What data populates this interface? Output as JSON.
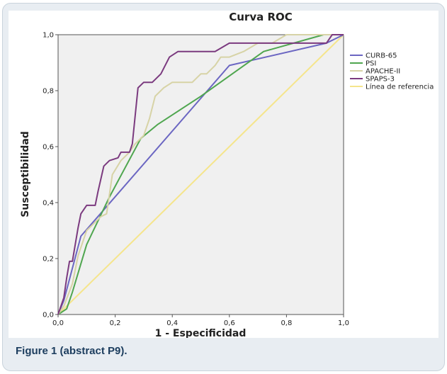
{
  "figure": {
    "caption": "Figure 1 (abstract P9)."
  },
  "chart_data": {
    "type": "line",
    "title": "Curva ROC",
    "xlabel": "1 - Especificidad",
    "ylabel": "Susceptibilidad",
    "xlim": [
      0,
      1
    ],
    "ylim": [
      0,
      1
    ],
    "xticks": [
      "0,0",
      "0,2",
      "0,4",
      "0,6",
      "0,8",
      "1,0"
    ],
    "yticks": [
      "0,0",
      "0,2",
      "0,4",
      "0,6",
      "0,8",
      "1,0"
    ],
    "grid": false,
    "legend_position": "right",
    "series": [
      {
        "name": "CURB-65",
        "color": "#6b66c2",
        "x": [
          0,
          0.02,
          0.08,
          0.6,
          0.94,
          1
        ],
        "y": [
          0,
          0.05,
          0.28,
          0.89,
          0.97,
          1
        ]
      },
      {
        "name": "PSI",
        "color": "#4fa64f",
        "x": [
          0,
          0.03,
          0.05,
          0.1,
          0.18,
          0.29,
          0.35,
          0.5,
          0.72,
          0.93,
          1
        ],
        "y": [
          0,
          0.02,
          0.08,
          0.25,
          0.42,
          0.63,
          0.68,
          0.78,
          0.94,
          1,
          1
        ]
      },
      {
        "name": "APACHE-II",
        "color": "#d7d3a6",
        "x": [
          0,
          0.02,
          0.05,
          0.07,
          0.1,
          0.15,
          0.17,
          0.19,
          0.22,
          0.25,
          0.27,
          0.3,
          0.32,
          0.34,
          0.37,
          0.4,
          0.43,
          0.47,
          0.5,
          0.52,
          0.55,
          0.57,
          0.6,
          0.65,
          0.7,
          0.75,
          0.8,
          0.85,
          0.9,
          0.95,
          1
        ],
        "y": [
          0,
          0.03,
          0.11,
          0.21,
          0.3,
          0.35,
          0.36,
          0.5,
          0.55,
          0.58,
          0.61,
          0.64,
          0.7,
          0.78,
          0.81,
          0.83,
          0.83,
          0.83,
          0.86,
          0.86,
          0.89,
          0.92,
          0.92,
          0.94,
          0.97,
          0.97,
          1,
          1,
          1,
          1,
          1
        ]
      },
      {
        "name": "SPAPS-3",
        "color": "#7b3a7f",
        "x": [
          0,
          0.02,
          0.03,
          0.04,
          0.05,
          0.07,
          0.08,
          0.1,
          0.13,
          0.14,
          0.16,
          0.18,
          0.21,
          0.22,
          0.25,
          0.26,
          0.28,
          0.3,
          0.33,
          0.36,
          0.39,
          0.42,
          0.5,
          0.55,
          0.6,
          0.94,
          0.96,
          1
        ],
        "y": [
          0,
          0.06,
          0.13,
          0.19,
          0.19,
          0.31,
          0.36,
          0.39,
          0.39,
          0.44,
          0.53,
          0.55,
          0.56,
          0.58,
          0.58,
          0.61,
          0.81,
          0.83,
          0.83,
          0.86,
          0.92,
          0.94,
          0.94,
          0.94,
          0.97,
          0.97,
          1,
          1
        ]
      },
      {
        "name": "Línea de referencia",
        "color": "#f5e58c",
        "x": [
          0,
          1
        ],
        "y": [
          0,
          1
        ]
      }
    ]
  }
}
